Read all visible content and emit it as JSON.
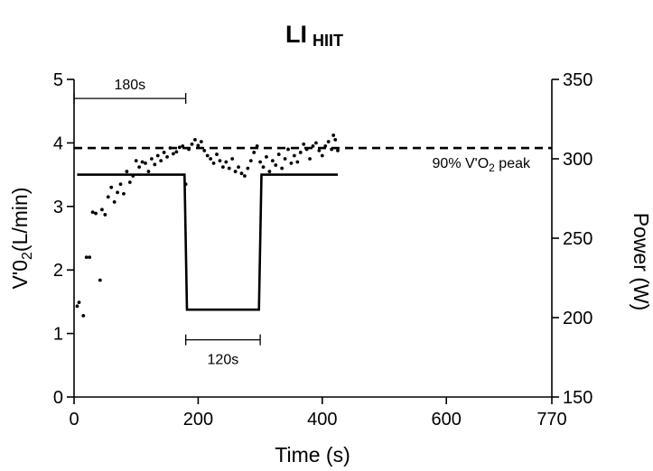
{
  "chart_data": {
    "type": "scatter",
    "title": "LI",
    "title_subscript": "HIIT",
    "xlabel": "Time (s)",
    "ylabel_prefix": "V'0",
    "ylabel_sub": "2",
    "ylabel_suffix": "(L/min)",
    "y2label": "Power (W)",
    "xlim": [
      0,
      770
    ],
    "ylim": [
      0,
      5
    ],
    "y2lim": [
      150,
      350
    ],
    "x_ticks": [
      0,
      200,
      400,
      600,
      770
    ],
    "x_tick_labels": [
      "0",
      "200",
      "400",
      "600",
      "770"
    ],
    "y_ticks": [
      0,
      1,
      2,
      3,
      4,
      5
    ],
    "y_tick_labels": [
      "0",
      "1",
      "2",
      "3",
      "4",
      "5"
    ],
    "y2_ticks": [
      150,
      200,
      250,
      300,
      350
    ],
    "y2_tick_labels": [
      "150",
      "200",
      "250",
      "300",
      "350"
    ],
    "grid": false,
    "series": [
      {
        "kind": "scatter",
        "axis": "left",
        "points": [
          [
            5,
            1.43
          ],
          [
            8,
            1.49
          ],
          [
            15,
            1.28
          ],
          [
            20,
            2.2
          ],
          [
            25,
            2.2
          ],
          [
            30,
            2.91
          ],
          [
            35,
            2.89
          ],
          [
            42,
            1.84
          ],
          [
            45,
            2.95
          ],
          [
            50,
            2.87
          ],
          [
            55,
            3.15
          ],
          [
            60,
            3.3
          ],
          [
            65,
            3.07
          ],
          [
            70,
            3.22
          ],
          [
            75,
            3.35
          ],
          [
            80,
            3.2
          ],
          [
            85,
            3.55
          ],
          [
            90,
            3.38
          ],
          [
            95,
            3.48
          ],
          [
            100,
            3.72
          ],
          [
            105,
            3.62
          ],
          [
            110,
            3.7
          ],
          [
            115,
            3.68
          ],
          [
            120,
            3.55
          ],
          [
            125,
            3.75
          ],
          [
            130,
            3.66
          ],
          [
            135,
            3.8
          ],
          [
            140,
            3.72
          ],
          [
            145,
            3.85
          ],
          [
            150,
            3.78
          ],
          [
            155,
            3.92
          ],
          [
            160,
            3.83
          ],
          [
            165,
            3.86
          ],
          [
            170,
            3.93
          ],
          [
            175,
            3.95
          ],
          [
            180,
            3.35
          ],
          [
            185,
            3.9
          ],
          [
            190,
            3.98
          ],
          [
            195,
            4.05
          ],
          [
            200,
            3.96
          ],
          [
            205,
            4.02
          ],
          [
            210,
            3.88
          ],
          [
            215,
            3.8
          ],
          [
            220,
            3.75
          ],
          [
            225,
            3.68
          ],
          [
            230,
            3.82
          ],
          [
            235,
            3.72
          ],
          [
            240,
            3.62
          ],
          [
            245,
            3.7
          ],
          [
            250,
            3.6
          ],
          [
            255,
            3.75
          ],
          [
            260,
            3.55
          ],
          [
            265,
            3.62
          ],
          [
            270,
            3.52
          ],
          [
            275,
            3.48
          ],
          [
            280,
            3.6
          ],
          [
            285,
            3.72
          ],
          [
            290,
            3.85
          ],
          [
            295,
            3.95
          ],
          [
            300,
            3.7
          ],
          [
            305,
            3.62
          ],
          [
            310,
            3.78
          ],
          [
            315,
            3.55
          ],
          [
            320,
            3.72
          ],
          [
            325,
            3.65
          ],
          [
            330,
            3.82
          ],
          [
            335,
            3.6
          ],
          [
            340,
            3.75
          ],
          [
            345,
            3.9
          ],
          [
            350,
            3.68
          ],
          [
            355,
            3.8
          ],
          [
            360,
            3.7
          ],
          [
            365,
            3.85
          ],
          [
            370,
            3.98
          ],
          [
            375,
            3.9
          ],
          [
            380,
            3.75
          ],
          [
            385,
            3.95
          ],
          [
            390,
            4.0
          ],
          [
            395,
            3.88
          ],
          [
            400,
            3.8
          ],
          [
            405,
            3.95
          ],
          [
            410,
            4.02
          ],
          [
            415,
            3.9
          ],
          [
            418,
            4.12
          ],
          [
            421,
            4.05
          ],
          [
            425,
            3.88
          ]
        ]
      },
      {
        "kind": "step-line",
        "axis": "right",
        "points": [
          [
            5,
            290
          ],
          [
            178,
            290
          ],
          [
            182,
            205
          ],
          [
            298,
            205
          ],
          [
            302,
            290
          ],
          [
            425,
            290
          ]
        ]
      },
      {
        "kind": "reference-line",
        "axis": "left",
        "y": 3.92,
        "label_prefix": "90% V'O",
        "label_sub": "2",
        "label_suffix": " peak"
      }
    ],
    "annotations": [
      {
        "kind": "bracket",
        "x0": 0,
        "x1": 180,
        "y": 4.7,
        "label": "180s",
        "label_pos": "above"
      },
      {
        "kind": "bracket",
        "x0": 180,
        "x1": 300,
        "y": 0.9,
        "label": "120s",
        "label_pos": "below"
      }
    ]
  }
}
